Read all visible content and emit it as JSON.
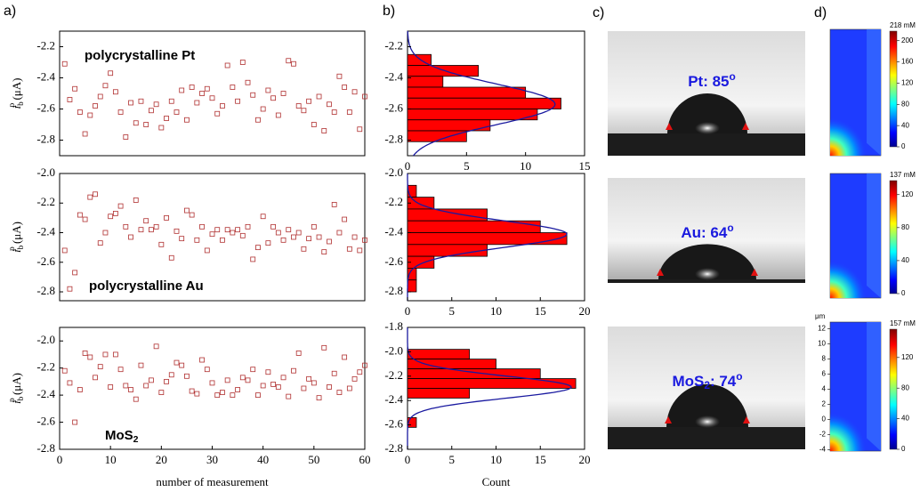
{
  "panels": [
    "a)",
    "b)",
    "c)",
    "d)"
  ],
  "photos": [
    {
      "label": [
        {
          "text": "Pt: 85"
        },
        {
          "text": "o",
          "shift": "super"
        }
      ]
    },
    {
      "label": [
        {
          "text": "Au: 64"
        },
        {
          "text": "o",
          "shift": "super"
        }
      ]
    },
    {
      "label": [
        {
          "text": "MoS"
        },
        {
          "text": "2",
          "shift": "sub"
        },
        {
          "text": ": 74"
        },
        {
          "text": "o",
          "shift": "super"
        }
      ]
    }
  ],
  "chart_data": [
    {
      "type": "scatter",
      "annotation": [
        {
          "text": "polycrystalline Pt"
        }
      ],
      "y_label": [
        {
          "text": "i",
          "style": "italic"
        },
        {
          "text": "b",
          "shift": "sub"
        },
        {
          "text": "p",
          "shift": "super"
        },
        {
          "text": " (μA)"
        }
      ],
      "color": "#b03030",
      "xlim": [
        0,
        60
      ],
      "ylim": [
        -2.9,
        -2.1
      ],
      "yticks": [
        -2.2,
        -2.4,
        -2.6,
        -2.8
      ],
      "x": [
        1,
        2,
        3,
        4,
        5,
        6,
        7,
        8,
        9,
        10,
        11,
        12,
        13,
        14,
        15,
        16,
        17,
        18,
        19,
        20,
        21,
        22,
        23,
        24,
        25,
        26,
        27,
        28,
        29,
        30,
        31,
        32,
        33,
        34,
        35,
        36,
        37,
        38,
        39,
        40,
        41,
        42,
        43,
        44,
        45,
        46,
        47,
        48,
        49,
        50,
        51,
        52,
        53,
        54,
        55,
        56,
        57,
        58,
        59,
        60
      ],
      "values": [
        -2.31,
        -2.54,
        -2.47,
        -2.62,
        -2.76,
        -2.64,
        -2.58,
        -2.52,
        -2.45,
        -2.37,
        -2.49,
        -2.62,
        -2.78,
        -2.56,
        -2.69,
        -2.55,
        -2.7,
        -2.61,
        -2.57,
        -2.72,
        -2.66,
        -2.55,
        -2.62,
        -2.48,
        -2.67,
        -2.46,
        -2.56,
        -2.5,
        -2.47,
        -2.53,
        -2.63,
        -2.58,
        -2.32,
        -2.46,
        -2.55,
        -2.3,
        -2.43,
        -2.51,
        -2.67,
        -2.6,
        -2.48,
        -2.53,
        -2.64,
        -2.5,
        -2.29,
        -2.31,
        -2.58,
        -2.61,
        -2.55,
        -2.7,
        -2.52,
        -2.74,
        -2.57,
        -2.62,
        -2.39,
        -2.46,
        -2.62,
        -2.49,
        -2.73,
        -2.52
      ]
    },
    {
      "type": "scatter",
      "annotation": [
        {
          "text": "polycrystalline Au"
        }
      ],
      "y_label": [
        {
          "text": "i",
          "style": "italic"
        },
        {
          "text": "b",
          "shift": "sub"
        },
        {
          "text": "p",
          "shift": "super"
        },
        {
          "text": " (μA)"
        }
      ],
      "color": "#b03030",
      "xlim": [
        0,
        60
      ],
      "ylim": [
        -2.86,
        -2.0
      ],
      "yticks": [
        {
          "value": -2,
          "label": "-2.0"
        },
        -2.2,
        -2.4,
        -2.6,
        -2.8
      ],
      "x": [
        1,
        2,
        3,
        4,
        5,
        6,
        7,
        8,
        9,
        10,
        11,
        12,
        13,
        14,
        15,
        16,
        17,
        18,
        19,
        20,
        21,
        22,
        23,
        24,
        25,
        26,
        27,
        28,
        29,
        30,
        31,
        32,
        33,
        34,
        35,
        36,
        37,
        38,
        39,
        40,
        41,
        42,
        43,
        44,
        45,
        46,
        47,
        48,
        49,
        50,
        51,
        52,
        53,
        54,
        55,
        56,
        57,
        58,
        59,
        60
      ],
      "values": [
        -2.52,
        -2.78,
        -2.67,
        -2.28,
        -2.31,
        -2.16,
        -2.14,
        -2.47,
        -2.4,
        -2.29,
        -2.27,
        -2.22,
        -2.36,
        -2.43,
        -2.18,
        -2.38,
        -2.32,
        -2.38,
        -2.36,
        -2.48,
        -2.3,
        -2.57,
        -2.39,
        -2.44,
        -2.25,
        -2.28,
        -2.45,
        -2.36,
        -2.52,
        -2.41,
        -2.38,
        -2.45,
        -2.38,
        -2.4,
        -2.38,
        -2.42,
        -2.36,
        -2.58,
        -2.5,
        -2.29,
        -2.47,
        -2.36,
        -2.4,
        -2.45,
        -2.38,
        -2.43,
        -2.4,
        -2.51,
        -2.44,
        -2.36,
        -2.43,
        -2.53,
        -2.46,
        -2.21,
        -2.4,
        -2.31,
        -2.51,
        -2.43,
        -2.52,
        -2.45
      ]
    },
    {
      "type": "scatter",
      "annotation": [
        {
          "text": "MoS"
        },
        {
          "text": "2",
          "shift": "sub"
        }
      ],
      "y_label": [
        {
          "text": "i",
          "style": "italic"
        },
        {
          "text": "b",
          "shift": "sub"
        },
        {
          "text": "p",
          "shift": "super"
        },
        {
          "text": " (μA)"
        }
      ],
      "x_label": "number of measurement",
      "color": "#b03030",
      "xlim": [
        0,
        60
      ],
      "xticks": [
        0,
        10,
        20,
        30,
        40,
        50,
        60
      ],
      "ylim": [
        -2.8,
        -1.9
      ],
      "yticks": [
        {
          "value": -2,
          "label": "-2.0"
        },
        -2.2,
        -2.4,
        -2.6,
        -2.8
      ],
      "x": [
        1,
        2,
        3,
        4,
        5,
        6,
        7,
        8,
        9,
        10,
        11,
        12,
        13,
        14,
        15,
        16,
        17,
        18,
        19,
        20,
        21,
        22,
        23,
        24,
        25,
        26,
        27,
        28,
        29,
        30,
        31,
        32,
        33,
        34,
        35,
        36,
        37,
        38,
        39,
        40,
        41,
        42,
        43,
        44,
        45,
        46,
        47,
        48,
        49,
        50,
        51,
        52,
        53,
        54,
        55,
        56,
        57,
        58,
        59,
        60
      ],
      "values": [
        -2.22,
        -2.31,
        -2.6,
        -2.36,
        -2.09,
        -2.12,
        -2.27,
        -2.19,
        -2.1,
        -2.34,
        -2.1,
        -2.21,
        -2.33,
        -2.36,
        -2.43,
        -2.18,
        -2.33,
        -2.29,
        -2.04,
        -2.38,
        -2.3,
        -2.25,
        -2.16,
        -2.18,
        -2.26,
        -2.37,
        -2.39,
        -2.14,
        -2.21,
        -2.31,
        -2.4,
        -2.38,
        -2.29,
        -2.4,
        -2.36,
        -2.27,
        -2.29,
        -2.21,
        -2.4,
        -2.33,
        -2.23,
        -2.32,
        -2.34,
        -2.27,
        -2.41,
        -2.22,
        -2.09,
        -2.35,
        -2.28,
        -2.31,
        -2.42,
        -2.05,
        -2.34,
        -2.24,
        -2.38,
        -2.12,
        -2.35,
        -2.28,
        -2.23,
        -2.18
      ]
    },
    {
      "type": "histogram",
      "color": "#ff0000",
      "fit_color": "#1a1aa0",
      "xlim": [
        0,
        15
      ],
      "xticks": [
        0,
        5,
        10,
        15
      ],
      "ylim": [
        -2.9,
        -2.1
      ],
      "yticks": [
        -2.2,
        -2.4,
        -2.6,
        -2.8
      ],
      "bins": [
        -2.25,
        -2.32,
        -2.39,
        -2.46,
        -2.53,
        -2.6,
        -2.67,
        -2.74,
        -2.81
      ],
      "counts": [
        2,
        6,
        3,
        10,
        13,
        11,
        7,
        5
      ],
      "fit": {
        "mean": -2.57,
        "sd": 0.13,
        "peak": 12.5
      }
    },
    {
      "type": "histogram",
      "color": "#ff0000",
      "fit_color": "#1a1aa0",
      "xlim": [
        0,
        20
      ],
      "xticks": [
        0,
        5,
        10,
        15,
        20
      ],
      "ylim": [
        -2.86,
        -2.0
      ],
      "yticks": [
        {
          "value": -2,
          "label": "-2.0"
        },
        -2.2,
        -2.4,
        -2.6,
        -2.8
      ],
      "bins": [
        -2.08,
        -2.16,
        -2.24,
        -2.32,
        -2.4,
        -2.48,
        -2.56,
        -2.64,
        -2.72,
        -2.8
      ],
      "counts": [
        1,
        3,
        9,
        15,
        18,
        9,
        3,
        1,
        1
      ],
      "fit": {
        "mean": -2.41,
        "sd": 0.09,
        "peak": 18
      }
    },
    {
      "type": "histogram",
      "color": "#ff0000",
      "fit_color": "#1a1aa0",
      "x_label": "Count",
      "xlim": [
        0,
        20
      ],
      "xticks": [
        0,
        5,
        10,
        15,
        20
      ],
      "ylim": [
        -2.8,
        -1.8
      ],
      "yticks": [
        -1.8,
        {
          "value": -2,
          "label": "-2.0"
        },
        -2.2,
        -2.4,
        -2.6,
        -2.8
      ],
      "bins": [
        -1.98,
        -2.06,
        -2.14,
        -2.22,
        -2.3,
        -2.38,
        -2.46,
        -2.54,
        -2.62
      ],
      "counts": [
        7,
        10,
        15,
        19,
        7,
        0,
        0,
        1
      ],
      "fit": {
        "mean": -2.29,
        "sd": 0.09,
        "peak": 18.5
      }
    },
    {
      "type": "colormap",
      "max_label": "218 mM",
      "clim": [
        0,
        218
      ],
      "ticks": [
        0,
        40,
        80,
        120,
        160,
        200
      ]
    },
    {
      "type": "colormap",
      "max_label": "137 mM",
      "clim": [
        0,
        137
      ],
      "ticks": [
        0,
        40,
        80,
        120
      ]
    },
    {
      "type": "colormap",
      "max_label": "157 mM",
      "clim": [
        0,
        157
      ],
      "ticks": [
        0,
        40,
        80,
        120
      ],
      "y_label": "μm",
      "ylim": [
        -4.2,
        12.9
      ],
      "yticks": [
        -4,
        -2,
        0,
        2,
        4,
        6,
        8,
        10,
        12
      ]
    }
  ]
}
